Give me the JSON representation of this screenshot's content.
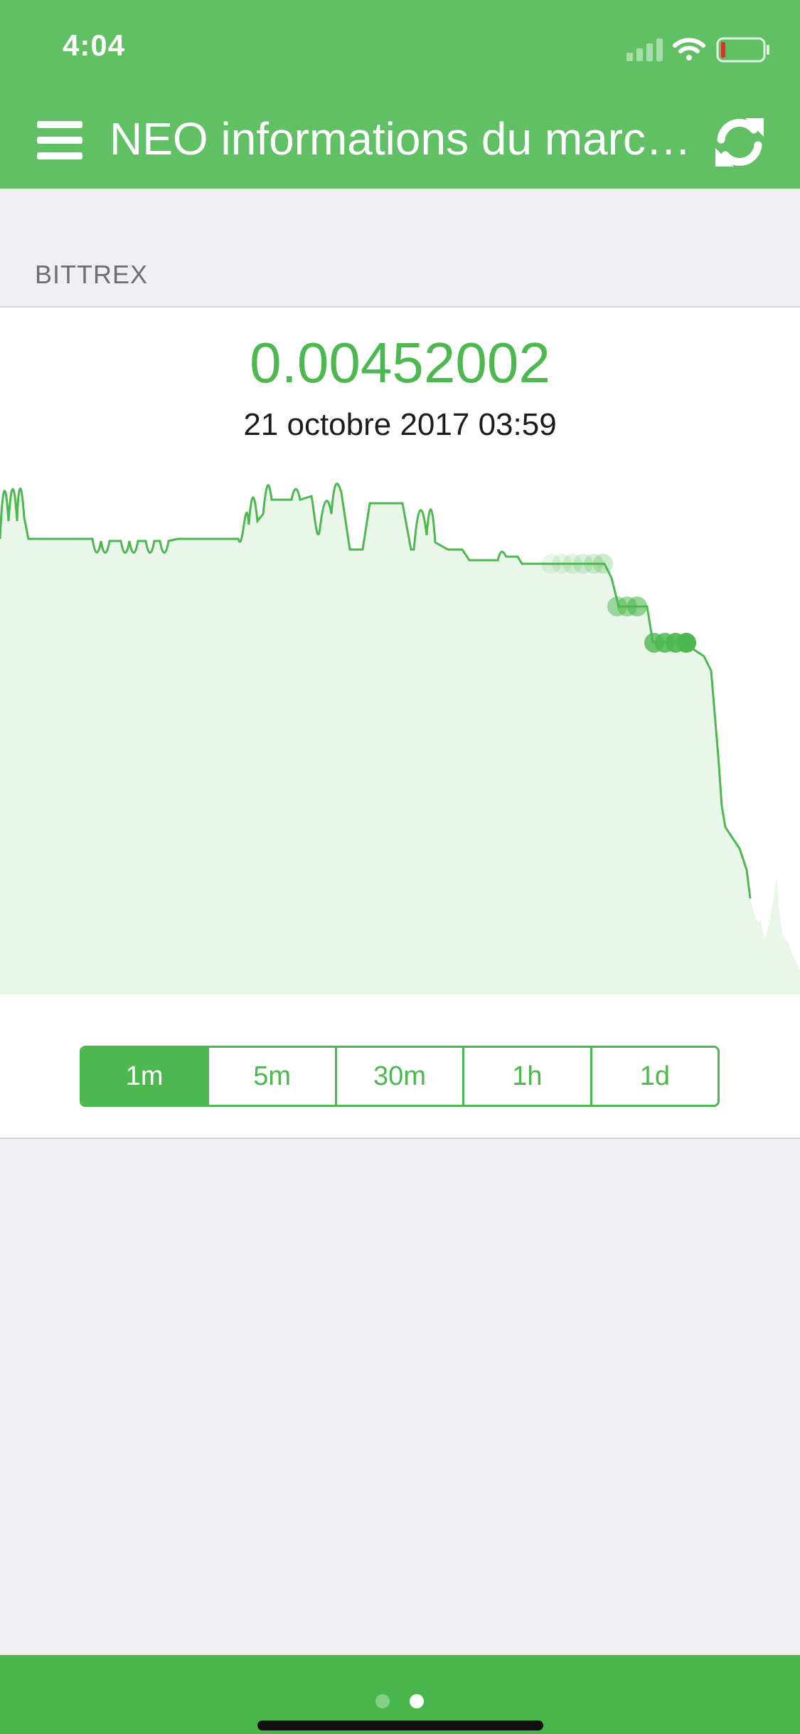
{
  "status_bar": {
    "time": "4:04"
  },
  "header": {
    "title": "NEO informations du marc…",
    "menu_icon": "hamburger-menu-icon",
    "refresh_icon": "refresh-icon"
  },
  "exchange": {
    "name": "BITTREX"
  },
  "market": {
    "price": "0.00452002",
    "timestamp": "21 octobre 2017 03:59"
  },
  "intervals": {
    "selected": "1m",
    "options": [
      "1m",
      "5m",
      "30m",
      "1h",
      "1d"
    ]
  },
  "pagination": {
    "pages": 2,
    "current": 2
  },
  "colors": {
    "header": "#62c064",
    "accent": "#4cb84f",
    "chart_fill": "#eaf6ea",
    "bottom_bar": "#48b64b"
  }
}
